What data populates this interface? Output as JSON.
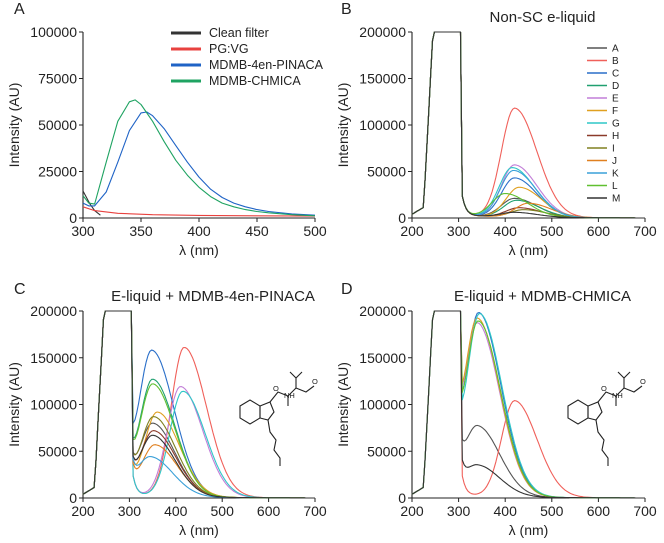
{
  "chart_data": [
    {
      "panel": "A",
      "type": "line",
      "title": "",
      "xlabel": "λ (nm)",
      "ylabel": "Intensity (AU)",
      "xlim": [
        300,
        500
      ],
      "ylim": [
        0,
        100000
      ],
      "xticks": [
        300,
        350,
        400,
        450,
        500
      ],
      "yticks": [
        0,
        25000,
        50000,
        75000,
        100000
      ],
      "legend_position": "top-right",
      "series": [
        {
          "name": "Clean filter",
          "color": "#333333",
          "x": [
            300,
            303,
            306,
            310,
            315
          ],
          "y": [
            14500,
            11000,
            7500,
            4000,
            1500
          ]
        },
        {
          "name": "PG:VG",
          "color": "#e8423f",
          "x": [
            300,
            310,
            330,
            360,
            400,
            450,
            500
          ],
          "y": [
            6000,
            4000,
            2500,
            1800,
            1400,
            1200,
            1000
          ]
        },
        {
          "name": "MDMB-4en-PINACA",
          "color": "#1f63c6",
          "x": [
            300,
            305,
            310,
            320,
            330,
            340,
            350,
            355,
            360,
            370,
            380,
            390,
            400,
            410,
            420,
            430,
            440,
            450,
            460,
            480,
            500
          ],
          "y": [
            8000,
            6500,
            6500,
            14000,
            30000,
            47000,
            56500,
            57000,
            55000,
            48000,
            39000,
            30000,
            22000,
            15500,
            11000,
            8000,
            6000,
            4500,
            3500,
            2200,
            1500
          ]
        },
        {
          "name": "MDMB-CHMICA",
          "color": "#1fa362",
          "x": [
            300,
            305,
            310,
            320,
            330,
            340,
            345,
            350,
            360,
            370,
            380,
            390,
            400,
            410,
            420,
            430,
            440,
            450,
            460,
            480,
            500
          ],
          "y": [
            12000,
            8000,
            7500,
            30000,
            52000,
            62500,
            63500,
            61000,
            52000,
            41000,
            31000,
            23000,
            16500,
            11500,
            8000,
            6000,
            4500,
            3500,
            2800,
            1800,
            1200
          ]
        }
      ]
    },
    {
      "panel": "B",
      "type": "line",
      "title": "Non-SC e-liquid",
      "xlabel": "λ (nm)",
      "ylabel": "Intensity (AU)",
      "xlim": [
        200,
        700
      ],
      "ylim": [
        0,
        200000
      ],
      "xticks": [
        200,
        300,
        400,
        500,
        600,
        700
      ],
      "yticks": [
        0,
        50000,
        100000,
        150000,
        200000
      ],
      "legend_position": "top-right",
      "series": [
        {
          "name": "A",
          "color": "#555555",
          "peak": 20000,
          "center": 420
        },
        {
          "name": "B",
          "color": "#f0605a",
          "peak": 117000,
          "center": 420
        },
        {
          "name": "C",
          "color": "#2a6fc9",
          "peak": 42000,
          "center": 420
        },
        {
          "name": "D",
          "color": "#20a070",
          "peak": 18000,
          "center": 425
        },
        {
          "name": "E",
          "color": "#c27fd8",
          "peak": 56000,
          "center": 420
        },
        {
          "name": "F",
          "color": "#e0a020",
          "peak": 32000,
          "center": 430
        },
        {
          "name": "G",
          "color": "#2ec7c7",
          "peak": 53000,
          "center": 415
        },
        {
          "name": "H",
          "color": "#8b3a2a",
          "peak": 10000,
          "center": 430
        },
        {
          "name": "I",
          "color": "#808020",
          "peak": 8000,
          "center": 440
        },
        {
          "name": "J",
          "color": "#e08020",
          "peak": 15000,
          "center": 450
        },
        {
          "name": "K",
          "color": "#3aa0d8",
          "peak": 50000,
          "center": 418
        },
        {
          "name": "L",
          "color": "#60c030",
          "peak": 25000,
          "center": 400
        },
        {
          "name": "M",
          "color": "#333333",
          "peak": 5000,
          "center": 420
        }
      ]
    },
    {
      "panel": "C",
      "type": "line",
      "title": "E-liquid + MDMB-4en-PINACA",
      "xlabel": "λ (nm)",
      "ylabel": "Intensity (AU)",
      "xlim": [
        200,
        700
      ],
      "ylim": [
        0,
        200000
      ],
      "xticks": [
        200,
        300,
        400,
        500,
        600,
        700
      ],
      "yticks": [
        0,
        50000,
        100000,
        150000,
        200000
      ],
      "series": [
        {
          "name": "A",
          "color": "#555555",
          "peak": 78000,
          "center": 350
        },
        {
          "name": "B",
          "color": "#f0605a",
          "peak": 160000,
          "center": 418
        },
        {
          "name": "C",
          "color": "#2a6fc9",
          "peak": 156000,
          "center": 348
        },
        {
          "name": "D",
          "color": "#20a070",
          "peak": 125000,
          "center": 350
        },
        {
          "name": "E",
          "color": "#c27fd8",
          "peak": 118000,
          "center": 410
        },
        {
          "name": "F",
          "color": "#e0a020",
          "peak": 90000,
          "center": 360
        },
        {
          "name": "G",
          "color": "#2ec7c7",
          "peak": 113000,
          "center": 415
        },
        {
          "name": "H",
          "color": "#8b3a2a",
          "peak": 70000,
          "center": 352
        },
        {
          "name": "I",
          "color": "#808020",
          "peak": 85000,
          "center": 352
        },
        {
          "name": "J",
          "color": "#e08020",
          "peak": 55000,
          "center": 355
        },
        {
          "name": "K",
          "color": "#3aa0d8",
          "peak": 42000,
          "center": 345
        },
        {
          "name": "L",
          "color": "#60c030",
          "peak": 120000,
          "center": 350
        },
        {
          "name": "M",
          "color": "#333333",
          "peak": 65000,
          "center": 350
        }
      ]
    },
    {
      "panel": "D",
      "type": "line",
      "title": "E-liquid + MDMB-CHMICA",
      "xlabel": "λ (nm)",
      "ylabel": "Intensity (AU)",
      "xlim": [
        200,
        700
      ],
      "ylim": [
        0,
        200000
      ],
      "xticks": [
        200,
        300,
        400,
        500,
        600,
        700
      ],
      "yticks": [
        0,
        50000,
        100000,
        150000,
        200000
      ],
      "series": [
        {
          "name": "A",
          "color": "#555555",
          "peak": 75000,
          "center": 340
        },
        {
          "name": "B",
          "color": "#f0605a",
          "peak": 103000,
          "center": 420
        },
        {
          "name": "C",
          "color": "#2a6fc9",
          "peak": 196000,
          "center": 343
        },
        {
          "name": "E",
          "color": "#c27fd8",
          "peak": 185000,
          "center": 340
        },
        {
          "name": "F",
          "color": "#e0a020",
          "peak": 190000,
          "center": 340
        },
        {
          "name": "G",
          "color": "#2ec7c7",
          "peak": 195000,
          "center": 345
        },
        {
          "name": "L",
          "color": "#60c030",
          "peak": 187000,
          "center": 342
        },
        {
          "name": "M",
          "color": "#333333",
          "peak": 33000,
          "center": 340
        }
      ]
    }
  ]
}
